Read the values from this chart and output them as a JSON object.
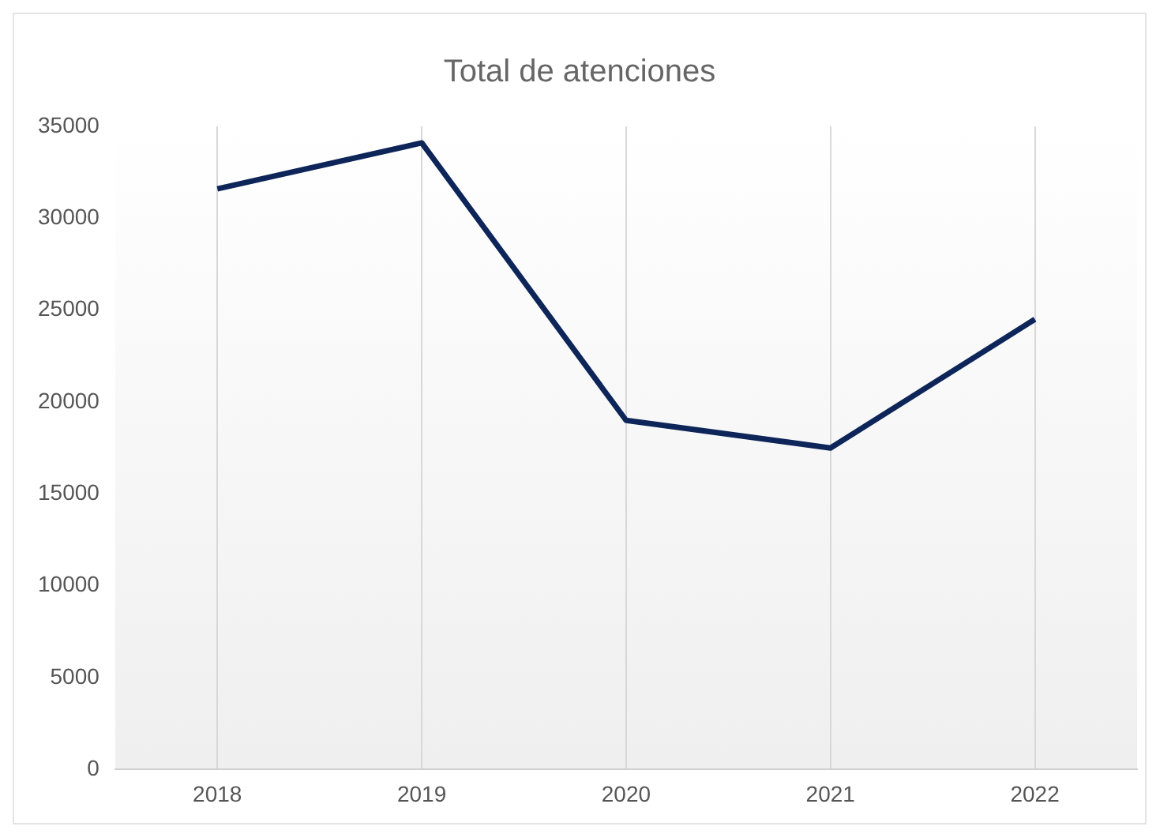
{
  "chart_data": {
    "type": "line",
    "title": "Total de atenciones",
    "categories": [
      "2018",
      "2019",
      "2020",
      "2021",
      "2022"
    ],
    "series": [
      {
        "color": "#0d2559",
        "values": [
          31600,
          34100,
          19000,
          17500,
          24500
        ]
      }
    ],
    "ylim": [
      0,
      35000
    ],
    "yticks": [
      0,
      5000,
      10000,
      15000,
      20000,
      25000,
      30000,
      35000
    ],
    "grid": "x",
    "legend": false,
    "marker": "none",
    "line_style": "solid"
  }
}
